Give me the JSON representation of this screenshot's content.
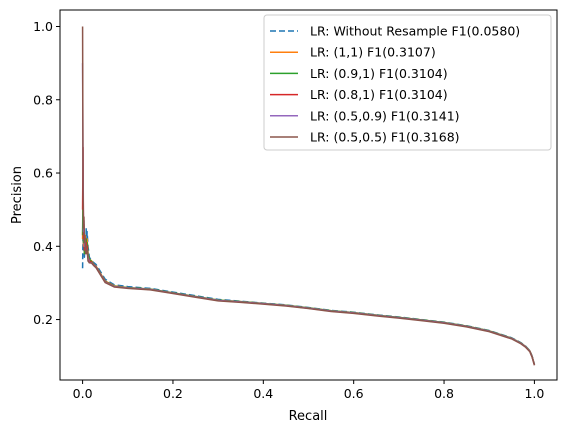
{
  "chart_data": {
    "type": "line",
    "title": "",
    "xlabel": "Recall",
    "ylabel": "Precision",
    "xlim": [
      -0.05,
      1.05
    ],
    "ylim": [
      0.035,
      1.045
    ],
    "xticks": [
      0.0,
      0.2,
      0.4,
      0.6,
      0.8,
      1.0
    ],
    "xtick_labels": [
      "0.0",
      "0.2",
      "0.4",
      "0.6",
      "0.8",
      "1.0"
    ],
    "yticks": [
      0.2,
      0.4,
      0.6,
      0.8,
      1.0
    ],
    "ytick_labels": [
      "0.2",
      "0.4",
      "0.6",
      "0.8",
      "1.0"
    ],
    "grid": false,
    "legend_position": "top-right",
    "series": [
      {
        "name": "LR: Without Resample F1(0.0580)",
        "color": "#1f77b4",
        "dashed": true,
        "x": [
          0.0,
          0.001,
          0.002,
          0.003,
          0.004,
          0.005,
          0.006,
          0.007,
          0.008,
          0.009,
          0.01,
          0.012,
          0.015,
          0.02,
          0.025,
          0.03,
          0.04,
          0.05,
          0.07,
          0.1,
          0.15,
          0.2,
          0.25,
          0.3,
          0.35,
          0.4,
          0.45,
          0.5,
          0.55,
          0.6,
          0.65,
          0.7,
          0.75,
          0.8,
          0.85,
          0.9,
          0.95,
          0.97,
          0.98,
          0.99,
          0.995,
          1.0
        ],
        "y": [
          0.34,
          0.44,
          0.39,
          0.42,
          0.37,
          0.4,
          0.43,
          0.38,
          0.45,
          0.41,
          0.44,
          0.4,
          0.37,
          0.36,
          0.355,
          0.35,
          0.33,
          0.31,
          0.295,
          0.29,
          0.285,
          0.275,
          0.265,
          0.255,
          0.25,
          0.245,
          0.24,
          0.233,
          0.225,
          0.22,
          0.213,
          0.207,
          0.2,
          0.193,
          0.183,
          0.17,
          0.15,
          0.137,
          0.128,
          0.115,
          0.1,
          0.078
        ]
      },
      {
        "name": "LR: (1,1) F1(0.3107)",
        "color": "#ff7f0e",
        "dashed": false,
        "x": [
          0.0,
          0.001,
          0.002,
          0.003,
          0.004,
          0.005,
          0.006,
          0.007,
          0.008,
          0.009,
          0.01,
          0.012,
          0.015,
          0.02,
          0.025,
          0.03,
          0.04,
          0.05,
          0.07,
          0.1,
          0.15,
          0.2,
          0.25,
          0.3,
          0.35,
          0.4,
          0.45,
          0.5,
          0.55,
          0.6,
          0.65,
          0.7,
          0.75,
          0.8,
          0.85,
          0.9,
          0.95,
          0.97,
          0.98,
          0.99,
          0.995,
          1.0
        ],
        "y": [
          0.42,
          0.52,
          0.4,
          0.44,
          0.38,
          0.41,
          0.43,
          0.39,
          0.42,
          0.4,
          0.42,
          0.38,
          0.365,
          0.36,
          0.35,
          0.345,
          0.325,
          0.305,
          0.292,
          0.287,
          0.283,
          0.273,
          0.263,
          0.253,
          0.249,
          0.244,
          0.239,
          0.232,
          0.224,
          0.219,
          0.212,
          0.206,
          0.199,
          0.192,
          0.182,
          0.169,
          0.149,
          0.136,
          0.127,
          0.114,
          0.099,
          0.077
        ]
      },
      {
        "name": "LR: (0.9,1) F1(0.3104)",
        "color": "#2ca02c",
        "dashed": false,
        "x": [
          0.0,
          0.001,
          0.002,
          0.003,
          0.004,
          0.005,
          0.006,
          0.007,
          0.008,
          0.009,
          0.01,
          0.012,
          0.015,
          0.02,
          0.025,
          0.03,
          0.04,
          0.05,
          0.07,
          0.1,
          0.15,
          0.2,
          0.25,
          0.3,
          0.35,
          0.4,
          0.45,
          0.5,
          0.55,
          0.6,
          0.65,
          0.7,
          0.75,
          0.8,
          0.85,
          0.9,
          0.95,
          0.97,
          0.98,
          0.99,
          0.995,
          1.0
        ],
        "y": [
          0.43,
          0.55,
          0.41,
          0.45,
          0.38,
          0.41,
          0.42,
          0.39,
          0.42,
          0.4,
          0.41,
          0.38,
          0.365,
          0.358,
          0.35,
          0.344,
          0.324,
          0.304,
          0.291,
          0.287,
          0.283,
          0.273,
          0.263,
          0.253,
          0.249,
          0.244,
          0.239,
          0.232,
          0.224,
          0.219,
          0.212,
          0.206,
          0.199,
          0.192,
          0.182,
          0.169,
          0.149,
          0.136,
          0.127,
          0.114,
          0.099,
          0.077
        ]
      },
      {
        "name": "LR: (0.8,1) F1(0.3104)",
        "color": "#d62728",
        "dashed": false,
        "x": [
          0.0,
          0.001,
          0.002,
          0.003,
          0.004,
          0.005,
          0.006,
          0.007,
          0.008,
          0.009,
          0.01,
          0.012,
          0.015,
          0.02,
          0.025,
          0.03,
          0.04,
          0.05,
          0.07,
          0.1,
          0.15,
          0.2,
          0.25,
          0.3,
          0.35,
          0.4,
          0.45,
          0.5,
          0.55,
          0.6,
          0.65,
          0.7,
          0.75,
          0.8,
          0.85,
          0.9,
          0.95,
          0.97,
          0.98,
          0.99,
          0.995,
          1.0
        ],
        "y": [
          0.5,
          0.67,
          0.42,
          0.46,
          0.39,
          0.41,
          0.42,
          0.38,
          0.41,
          0.39,
          0.4,
          0.37,
          0.36,
          0.356,
          0.349,
          0.343,
          0.323,
          0.303,
          0.29,
          0.286,
          0.282,
          0.272,
          0.262,
          0.252,
          0.248,
          0.243,
          0.238,
          0.231,
          0.223,
          0.218,
          0.211,
          0.205,
          0.198,
          0.191,
          0.181,
          0.168,
          0.148,
          0.135,
          0.126,
          0.113,
          0.098,
          0.076
        ]
      },
      {
        "name": "LR: (0.5,0.9) F1(0.3141)",
        "color": "#9467bd",
        "dashed": false,
        "x": [
          0.0,
          0.001,
          0.002,
          0.003,
          0.004,
          0.005,
          0.006,
          0.007,
          0.008,
          0.009,
          0.01,
          0.012,
          0.015,
          0.02,
          0.025,
          0.03,
          0.04,
          0.05,
          0.07,
          0.1,
          0.15,
          0.2,
          0.25,
          0.3,
          0.35,
          0.4,
          0.45,
          0.5,
          0.55,
          0.6,
          0.65,
          0.7,
          0.75,
          0.8,
          0.85,
          0.9,
          0.95,
          0.97,
          0.98,
          0.99,
          0.995,
          1.0
        ],
        "y": [
          0.9,
          0.6,
          0.44,
          0.47,
          0.4,
          0.42,
          0.41,
          0.38,
          0.4,
          0.39,
          0.39,
          0.37,
          0.355,
          0.355,
          0.348,
          0.342,
          0.322,
          0.302,
          0.29,
          0.286,
          0.282,
          0.272,
          0.262,
          0.252,
          0.248,
          0.243,
          0.238,
          0.231,
          0.223,
          0.218,
          0.211,
          0.205,
          0.198,
          0.191,
          0.181,
          0.168,
          0.148,
          0.135,
          0.126,
          0.113,
          0.098,
          0.076
        ]
      },
      {
        "name": "LR: (0.5,0.5) F1(0.3168)",
        "color": "#8c564b",
        "dashed": false,
        "x": [
          0.0,
          0.001,
          0.002,
          0.003,
          0.004,
          0.005,
          0.006,
          0.007,
          0.008,
          0.009,
          0.01,
          0.012,
          0.015,
          0.02,
          0.025,
          0.03,
          0.04,
          0.05,
          0.07,
          0.1,
          0.15,
          0.2,
          0.25,
          0.3,
          0.35,
          0.4,
          0.45,
          0.5,
          0.55,
          0.6,
          0.65,
          0.7,
          0.75,
          0.8,
          0.85,
          0.9,
          0.95,
          0.97,
          0.98,
          0.99,
          0.995,
          1.0
        ],
        "y": [
          1.0,
          0.55,
          0.45,
          0.48,
          0.41,
          0.43,
          0.4,
          0.38,
          0.4,
          0.38,
          0.39,
          0.36,
          0.355,
          0.354,
          0.347,
          0.341,
          0.321,
          0.301,
          0.289,
          0.285,
          0.281,
          0.271,
          0.261,
          0.251,
          0.247,
          0.242,
          0.237,
          0.23,
          0.222,
          0.217,
          0.21,
          0.204,
          0.197,
          0.19,
          0.18,
          0.167,
          0.147,
          0.134,
          0.125,
          0.112,
          0.097,
          0.075
        ]
      }
    ]
  }
}
